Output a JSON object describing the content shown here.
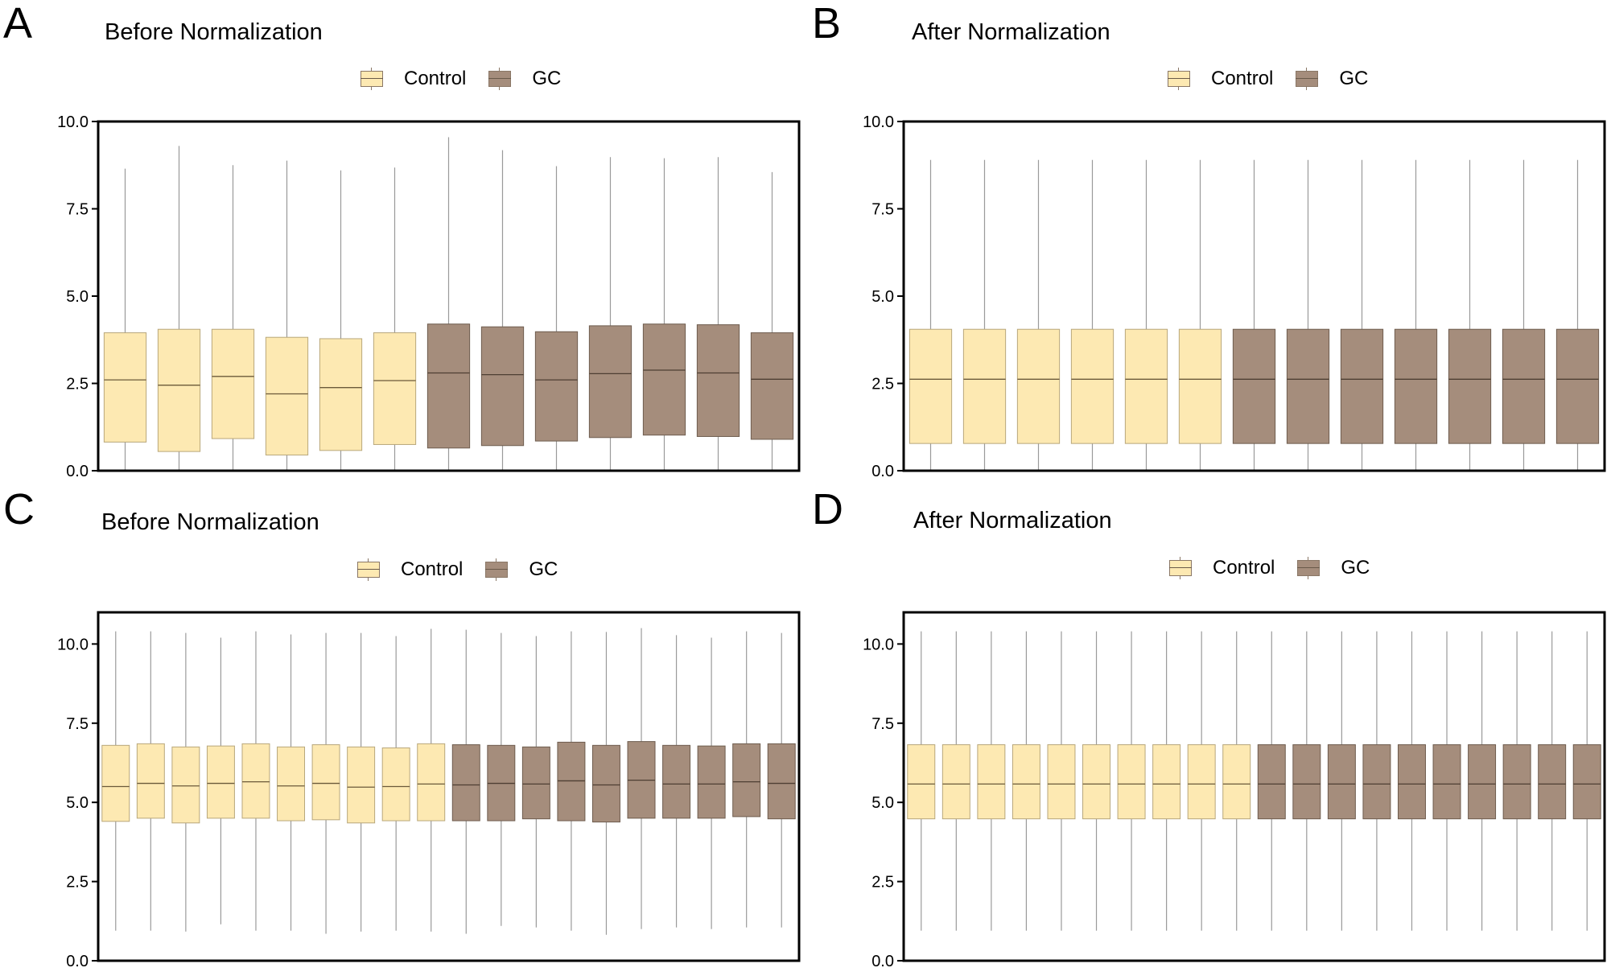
{
  "colors": {
    "control": "#fde9b2",
    "control_edge": "#b8a77b",
    "gc": "#a58d7c",
    "gc_edge": "#6e5c4e",
    "whisker": "#9a9a9a",
    "median_control": "#6b5a3a",
    "median_gc": "#4e3f33"
  },
  "legend": {
    "control_label": "Control",
    "gc_label": "GC"
  },
  "chart_data": [
    {
      "panel": "A",
      "title": "Before Normalization",
      "type": "box",
      "yticks": [
        "0.0",
        "2.5",
        "5.0",
        "7.5",
        "10.0"
      ],
      "ylim": [
        0,
        10
      ],
      "groups": [
        "Control",
        "Control",
        "Control",
        "Control",
        "Control",
        "Control",
        "GC",
        "GC",
        "GC",
        "GC",
        "GC",
        "GC",
        "GC"
      ],
      "boxes": [
        {
          "min": 0,
          "q1": 0.82,
          "median": 2.6,
          "q3": 3.95,
          "max": 8.65
        },
        {
          "min": 0,
          "q1": 0.55,
          "median": 2.45,
          "q3": 4.05,
          "max": 9.3
        },
        {
          "min": 0,
          "q1": 0.92,
          "median": 2.7,
          "q3": 4.05,
          "max": 8.75
        },
        {
          "min": 0,
          "q1": 0.45,
          "median": 2.2,
          "q3": 3.82,
          "max": 8.88
        },
        {
          "min": 0,
          "q1": 0.58,
          "median": 2.38,
          "q3": 3.78,
          "max": 8.6
        },
        {
          "min": 0,
          "q1": 0.75,
          "median": 2.58,
          "q3": 3.95,
          "max": 8.68
        },
        {
          "min": 0,
          "q1": 0.65,
          "median": 2.8,
          "q3": 4.2,
          "max": 9.55
        },
        {
          "min": 0,
          "q1": 0.72,
          "median": 2.75,
          "q3": 4.12,
          "max": 9.18
        },
        {
          "min": 0,
          "q1": 0.85,
          "median": 2.6,
          "q3": 3.98,
          "max": 8.72
        },
        {
          "min": 0,
          "q1": 0.95,
          "median": 2.78,
          "q3": 4.15,
          "max": 8.98
        },
        {
          "min": 0,
          "q1": 1.02,
          "median": 2.88,
          "q3": 4.2,
          "max": 8.95
        },
        {
          "min": 0,
          "q1": 0.98,
          "median": 2.8,
          "q3": 4.18,
          "max": 8.98
        },
        {
          "min": 0,
          "q1": 0.9,
          "median": 2.62,
          "q3": 3.95,
          "max": 8.55
        }
      ]
    },
    {
      "panel": "B",
      "title": "After Normalization",
      "type": "box",
      "yticks": [
        "0.0",
        "2.5",
        "5.0",
        "7.5",
        "10.0"
      ],
      "ylim": [
        0,
        10
      ],
      "groups": [
        "Control",
        "Control",
        "Control",
        "Control",
        "Control",
        "Control",
        "GC",
        "GC",
        "GC",
        "GC",
        "GC",
        "GC",
        "GC"
      ],
      "boxes": [
        {
          "min": 0,
          "q1": 0.78,
          "median": 2.62,
          "q3": 4.05,
          "max": 8.9
        },
        {
          "min": 0,
          "q1": 0.78,
          "median": 2.62,
          "q3": 4.05,
          "max": 8.9
        },
        {
          "min": 0,
          "q1": 0.78,
          "median": 2.62,
          "q3": 4.05,
          "max": 8.9
        },
        {
          "min": 0,
          "q1": 0.78,
          "median": 2.62,
          "q3": 4.05,
          "max": 8.9
        },
        {
          "min": 0,
          "q1": 0.78,
          "median": 2.62,
          "q3": 4.05,
          "max": 8.9
        },
        {
          "min": 0,
          "q1": 0.78,
          "median": 2.62,
          "q3": 4.05,
          "max": 8.9
        },
        {
          "min": 0,
          "q1": 0.78,
          "median": 2.62,
          "q3": 4.05,
          "max": 8.9
        },
        {
          "min": 0,
          "q1": 0.78,
          "median": 2.62,
          "q3": 4.05,
          "max": 8.9
        },
        {
          "min": 0,
          "q1": 0.78,
          "median": 2.62,
          "q3": 4.05,
          "max": 8.9
        },
        {
          "min": 0,
          "q1": 0.78,
          "median": 2.62,
          "q3": 4.05,
          "max": 8.9
        },
        {
          "min": 0,
          "q1": 0.78,
          "median": 2.62,
          "q3": 4.05,
          "max": 8.9
        },
        {
          "min": 0,
          "q1": 0.78,
          "median": 2.62,
          "q3": 4.05,
          "max": 8.9
        },
        {
          "min": 0,
          "q1": 0.78,
          "median": 2.62,
          "q3": 4.05,
          "max": 8.9
        }
      ]
    },
    {
      "panel": "C",
      "title": "Before Normalization",
      "type": "box",
      "yticks": [
        "0.0",
        "2.5",
        "5.0",
        "7.5",
        "10.0"
      ],
      "ylim": [
        0,
        11
      ],
      "groups": [
        "Control",
        "Control",
        "Control",
        "Control",
        "Control",
        "Control",
        "Control",
        "Control",
        "Control",
        "Control",
        "GC",
        "GC",
        "GC",
        "GC",
        "GC",
        "GC",
        "GC",
        "GC",
        "GC",
        "GC"
      ],
      "boxes": [
        {
          "min": 0.95,
          "q1": 4.4,
          "median": 5.5,
          "q3": 6.8,
          "max": 10.4
        },
        {
          "min": 0.95,
          "q1": 4.5,
          "median": 5.6,
          "q3": 6.85,
          "max": 10.4
        },
        {
          "min": 0.92,
          "q1": 4.35,
          "median": 5.52,
          "q3": 6.75,
          "max": 10.35
        },
        {
          "min": 1.15,
          "q1": 4.5,
          "median": 5.6,
          "q3": 6.78,
          "max": 10.2
        },
        {
          "min": 0.95,
          "q1": 4.5,
          "median": 5.65,
          "q3": 6.85,
          "max": 10.4
        },
        {
          "min": 0.95,
          "q1": 4.42,
          "median": 5.52,
          "q3": 6.75,
          "max": 10.3
        },
        {
          "min": 0.85,
          "q1": 4.45,
          "median": 5.6,
          "q3": 6.82,
          "max": 10.35
        },
        {
          "min": 0.92,
          "q1": 4.35,
          "median": 5.48,
          "q3": 6.75,
          "max": 10.35
        },
        {
          "min": 0.95,
          "q1": 4.42,
          "median": 5.5,
          "q3": 6.72,
          "max": 10.25
        },
        {
          "min": 0.92,
          "q1": 4.42,
          "median": 5.58,
          "q3": 6.85,
          "max": 10.48
        },
        {
          "min": 0.85,
          "q1": 4.42,
          "median": 5.55,
          "q3": 6.82,
          "max": 10.45
        },
        {
          "min": 1.1,
          "q1": 4.42,
          "median": 5.6,
          "q3": 6.8,
          "max": 10.35
        },
        {
          "min": 1.05,
          "q1": 4.48,
          "median": 5.58,
          "q3": 6.75,
          "max": 10.25
        },
        {
          "min": 0.95,
          "q1": 4.42,
          "median": 5.68,
          "q3": 6.9,
          "max": 10.4
        },
        {
          "min": 0.82,
          "q1": 4.38,
          "median": 5.55,
          "q3": 6.8,
          "max": 10.38
        },
        {
          "min": 1.0,
          "q1": 4.5,
          "median": 5.7,
          "q3": 6.92,
          "max": 10.5
        },
        {
          "min": 1.05,
          "q1": 4.5,
          "median": 5.58,
          "q3": 6.8,
          "max": 10.28
        },
        {
          "min": 1.0,
          "q1": 4.5,
          "median": 5.58,
          "q3": 6.78,
          "max": 10.2
        },
        {
          "min": 1.05,
          "q1": 4.55,
          "median": 5.65,
          "q3": 6.85,
          "max": 10.4
        },
        {
          "min": 1.05,
          "q1": 4.48,
          "median": 5.6,
          "q3": 6.85,
          "max": 10.35
        }
      ]
    },
    {
      "panel": "D",
      "title": "After Normalization",
      "type": "box",
      "yticks": [
        "0.0",
        "2.5",
        "5.0",
        "7.5",
        "10.0"
      ],
      "ylim": [
        0,
        11
      ],
      "groups": [
        "Control",
        "Control",
        "Control",
        "Control",
        "Control",
        "Control",
        "Control",
        "Control",
        "Control",
        "Control",
        "GC",
        "GC",
        "GC",
        "GC",
        "GC",
        "GC",
        "GC",
        "GC",
        "GC",
        "GC"
      ],
      "boxes": [
        {
          "min": 0.95,
          "q1": 4.48,
          "median": 5.58,
          "q3": 6.82,
          "max": 10.4
        },
        {
          "min": 0.95,
          "q1": 4.48,
          "median": 5.58,
          "q3": 6.82,
          "max": 10.4
        },
        {
          "min": 0.95,
          "q1": 4.48,
          "median": 5.58,
          "q3": 6.82,
          "max": 10.4
        },
        {
          "min": 0.95,
          "q1": 4.48,
          "median": 5.58,
          "q3": 6.82,
          "max": 10.4
        },
        {
          "min": 0.95,
          "q1": 4.48,
          "median": 5.58,
          "q3": 6.82,
          "max": 10.4
        },
        {
          "min": 0.95,
          "q1": 4.48,
          "median": 5.58,
          "q3": 6.82,
          "max": 10.4
        },
        {
          "min": 0.95,
          "q1": 4.48,
          "median": 5.58,
          "q3": 6.82,
          "max": 10.4
        },
        {
          "min": 0.95,
          "q1": 4.48,
          "median": 5.58,
          "q3": 6.82,
          "max": 10.4
        },
        {
          "min": 0.95,
          "q1": 4.48,
          "median": 5.58,
          "q3": 6.82,
          "max": 10.4
        },
        {
          "min": 0.95,
          "q1": 4.48,
          "median": 5.58,
          "q3": 6.82,
          "max": 10.4
        },
        {
          "min": 0.95,
          "q1": 4.48,
          "median": 5.58,
          "q3": 6.82,
          "max": 10.4
        },
        {
          "min": 0.95,
          "q1": 4.48,
          "median": 5.58,
          "q3": 6.82,
          "max": 10.4
        },
        {
          "min": 0.95,
          "q1": 4.48,
          "median": 5.58,
          "q3": 6.82,
          "max": 10.4
        },
        {
          "min": 0.95,
          "q1": 4.48,
          "median": 5.58,
          "q3": 6.82,
          "max": 10.4
        },
        {
          "min": 0.95,
          "q1": 4.48,
          "median": 5.58,
          "q3": 6.82,
          "max": 10.4
        },
        {
          "min": 0.95,
          "q1": 4.48,
          "median": 5.58,
          "q3": 6.82,
          "max": 10.4
        },
        {
          "min": 0.95,
          "q1": 4.48,
          "median": 5.58,
          "q3": 6.82,
          "max": 10.4
        },
        {
          "min": 0.95,
          "q1": 4.48,
          "median": 5.58,
          "q3": 6.82,
          "max": 10.4
        },
        {
          "min": 0.95,
          "q1": 4.48,
          "median": 5.58,
          "q3": 6.82,
          "max": 10.4
        },
        {
          "min": 0.95,
          "q1": 4.48,
          "median": 5.58,
          "q3": 6.82,
          "max": 10.4
        }
      ]
    }
  ]
}
